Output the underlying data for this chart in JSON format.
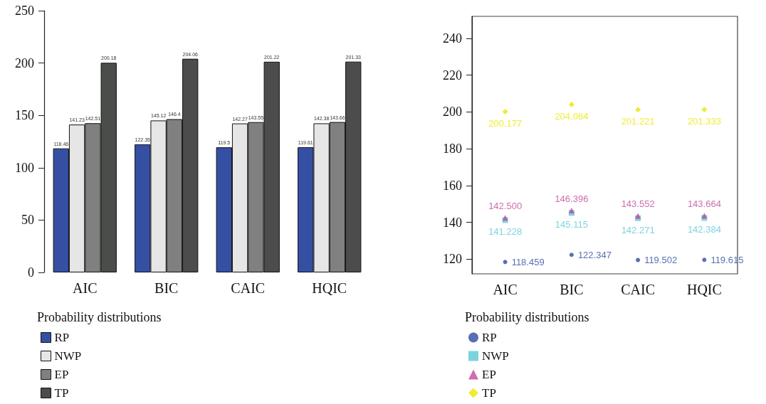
{
  "chart_data": [
    {
      "type": "bar",
      "categories": [
        "AIC",
        "BIC",
        "CAIC",
        "HQIC"
      ],
      "ylim": [
        0,
        250
      ],
      "yticks": [
        0,
        50,
        100,
        150,
        200,
        250
      ],
      "legend": "bottom",
      "legend_title": "Probability distributions",
      "series": [
        {
          "name": "RP",
          "color": "#3550a3",
          "values": [
            118.46,
            122.35,
            119.5,
            119.61
          ],
          "value_labels": [
            "118.46",
            "122.35",
            "119.5",
            "119.61"
          ]
        },
        {
          "name": "NWP",
          "color": "#e6e6e6",
          "values": [
            141.23,
            145.12,
            142.27,
            142.38
          ],
          "value_labels": [
            "141.23",
            "145.12",
            "142.27",
            "142.38"
          ]
        },
        {
          "name": "EP",
          "color": "#808080",
          "values": [
            142.51,
            146.4,
            143.55,
            143.66
          ],
          "value_labels": [
            "142.51",
            "146.4",
            "143.55",
            "143.66"
          ]
        },
        {
          "name": "TP",
          "color": "#4b4d4b",
          "values": [
            200.18,
            204.06,
            201.22,
            201.33
          ],
          "value_labels": [
            "200.18",
            "204.06",
            "201.22",
            "201.33"
          ]
        }
      ]
    },
    {
      "type": "scatter",
      "categories": [
        "AIC",
        "BIC",
        "CAIC",
        "HQIC"
      ],
      "ylim": [
        112,
        252
      ],
      "yticks": [
        120,
        140,
        160,
        180,
        200,
        220,
        240
      ],
      "legend": "bottom",
      "legend_title": "Probability distributions",
      "data_labels": true,
      "series": [
        {
          "name": "RP",
          "color": "#2f4b9e",
          "marker": "circle",
          "values": [
            118.459,
            122.347,
            119.502,
            119.615
          ]
        },
        {
          "name": "NWP",
          "color": "#5bc8d6",
          "marker": "square",
          "values": [
            141.228,
            145.115,
            142.271,
            142.384
          ]
        },
        {
          "name": "EP",
          "color": "#c0479a",
          "marker": "triangle",
          "values": [
            142.5,
            146.396,
            143.552,
            143.664
          ],
          "value_labels": [
            "142.500",
            "146.396",
            "143.552",
            "143.664"
          ]
        },
        {
          "name": "TP",
          "color": "#e8e800",
          "marker": "diamond",
          "values": [
            200.177,
            204.064,
            201.221,
            201.333
          ]
        }
      ]
    }
  ]
}
